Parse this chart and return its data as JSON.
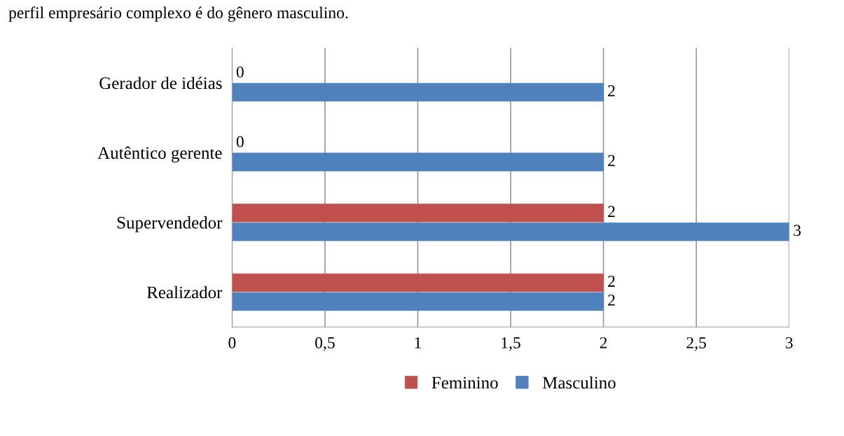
{
  "chart_data": {
    "type": "bar",
    "orientation": "horizontal",
    "categories": [
      "Gerador de idéias",
      "Autêntico gerente",
      "Supervendedor",
      "Realizador"
    ],
    "series": [
      {
        "name": "Feminino",
        "color": "#c0504d",
        "values": [
          0,
          0,
          2,
          2
        ]
      },
      {
        "name": "Masculino",
        "color": "#4f81bd",
        "values": [
          2,
          2,
          3,
          2
        ]
      }
    ],
    "xlim": [
      0,
      3
    ],
    "xticks": [
      0,
      {
        "value": 0.5,
        "label": "0,5"
      },
      1,
      {
        "value": 1.5,
        "label": "1,5"
      },
      2,
      {
        "value": 2.5,
        "label": "2,5"
      },
      3
    ],
    "grid": "x",
    "legend": "bottom",
    "data_labels": true,
    "annotations": [
      "perfil empresário complexo é do gênero masculino."
    ]
  }
}
